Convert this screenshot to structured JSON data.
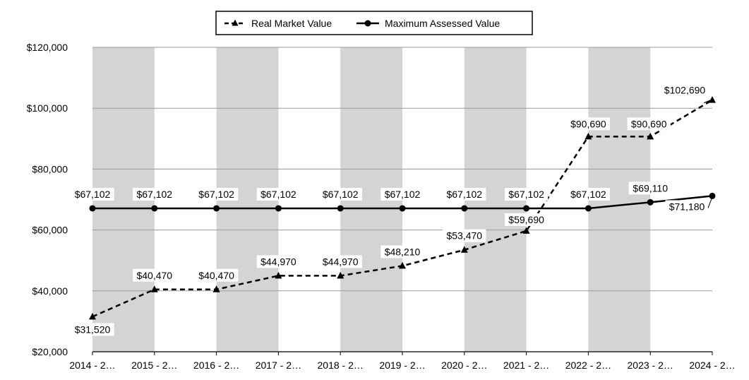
{
  "chart_data": {
    "type": "line",
    "title": "",
    "xlabel": "",
    "ylabel": "",
    "categories": [
      "2014 - 2…",
      "2015 - 2…",
      "2016 - 2…",
      "2017 - 2…",
      "2018 - 2…",
      "2019 - 2…",
      "2020 - 2…",
      "2021 - 2…",
      "2022 - 2…",
      "2023 - 2…",
      "2024 - 2…"
    ],
    "ylim": [
      20000,
      120000
    ],
    "yticks": [
      20000,
      40000,
      60000,
      80000,
      100000,
      120000
    ],
    "ytick_labels": [
      "$20,000",
      "$40,000",
      "$60,000",
      "$80,000",
      "$100,000",
      "$120,000"
    ],
    "grid": true,
    "legend_position": "top-center",
    "series": [
      {
        "name": "Real Market Value",
        "style": "dashed",
        "marker": "triangle",
        "color": "#000000",
        "values": [
          31520,
          40470,
          40470,
          44970,
          44970,
          48210,
          53470,
          59690,
          90690,
          90690,
          102690
        ],
        "labels": [
          "$31,520",
          "$40,470",
          "$40,470",
          "$44,970",
          "$44,970",
          "$48,210",
          "$53,470",
          "$59,690",
          "$90,690",
          "$90,690",
          "$102,690"
        ]
      },
      {
        "name": "Maximum Assessed Value",
        "style": "solid",
        "marker": "circle",
        "color": "#000000",
        "values": [
          67102,
          67102,
          67102,
          67102,
          67102,
          67102,
          67102,
          67102,
          67102,
          69110,
          71180
        ],
        "labels": [
          "$67,102",
          "$67,102",
          "$67,102",
          "$67,102",
          "$67,102",
          "$67,102",
          "$67,102",
          "$67,102",
          "$67,102",
          "$69,110",
          "$71,180"
        ]
      }
    ],
    "band_color": "#d4d4d4",
    "grid_color": "#9a9a9a"
  }
}
